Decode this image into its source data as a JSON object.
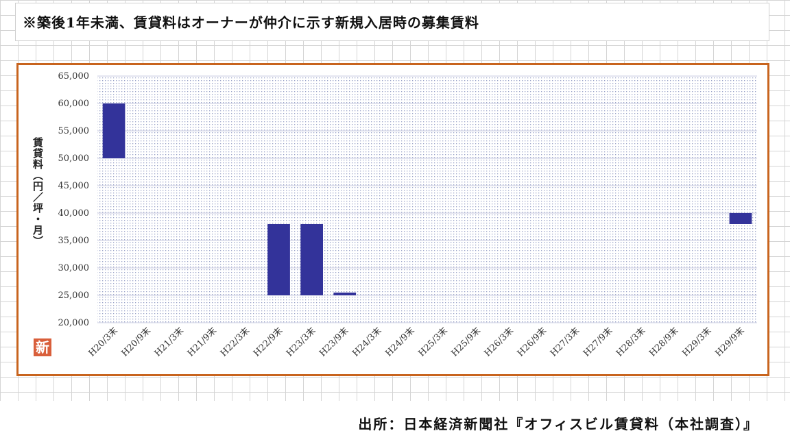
{
  "note": "※築後1年未満、賃貸料はオーナーが仲介に示す新規入居時の募集賃料",
  "source": "出所：日本経済新聞社『オフィスビル賃貸料（本社調査）』",
  "badge": "新",
  "colors": {
    "bar": "#33339a",
    "frame": "#c8641e",
    "plot_dots": "#9aa3c8"
  },
  "chart_data": {
    "type": "bar",
    "subtype": "floating-range",
    "ylabel": "賃貸料（円／坪・月）",
    "ylim": [
      20000,
      65000
    ],
    "yticks": [
      20000,
      25000,
      30000,
      35000,
      40000,
      45000,
      50000,
      55000,
      60000,
      65000
    ],
    "ytick_labels": [
      "20,000",
      "25,000",
      "30,000",
      "35,000",
      "40,000",
      "45,000",
      "50,000",
      "55,000",
      "60,000",
      "65,000"
    ],
    "grid": true,
    "legend": "none",
    "categories": [
      "H20/3末",
      "H20/9末",
      "H21/3末",
      "H21/9末",
      "H22/3末",
      "H22/9末",
      "H23/3末",
      "H23/9末",
      "H24/3末",
      "H24/9末",
      "H25/3末",
      "H25/9末",
      "H26/3末",
      "H26/9末",
      "H27/3末",
      "H27/9末",
      "H28/3末",
      "H28/9末",
      "H29/3末",
      "H29/9末"
    ],
    "series": [
      {
        "low": [
          50000,
          null,
          null,
          null,
          null,
          25000,
          25000,
          25000,
          null,
          null,
          null,
          null,
          null,
          null,
          null,
          null,
          null,
          null,
          null,
          38000
        ],
        "high": [
          60000,
          null,
          null,
          null,
          null,
          38000,
          38000,
          25500,
          null,
          null,
          null,
          null,
          null,
          null,
          null,
          null,
          null,
          null,
          null,
          40000
        ]
      }
    ]
  }
}
